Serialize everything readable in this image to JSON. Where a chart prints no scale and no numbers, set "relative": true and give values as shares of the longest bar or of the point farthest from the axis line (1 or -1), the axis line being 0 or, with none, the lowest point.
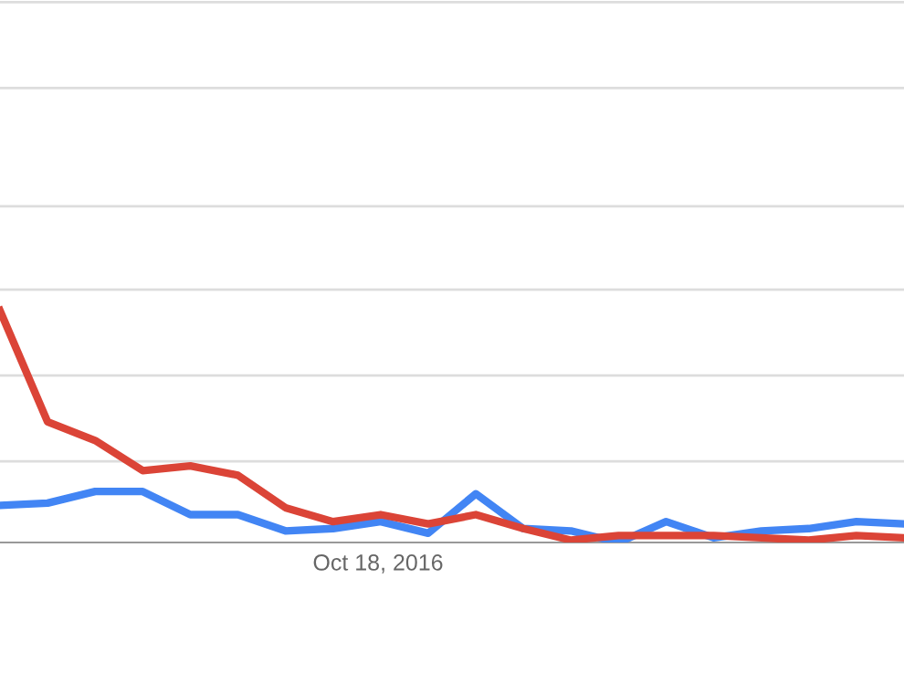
{
  "chart_data": {
    "type": "line",
    "relative": true,
    "legend": false,
    "marker": "none",
    "line_style": "solid",
    "categories": [
      null,
      null,
      null,
      null,
      null,
      null,
      null,
      null,
      null,
      null,
      null,
      null,
      null,
      null,
      null,
      null,
      null,
      null,
      null,
      null
    ],
    "annotations": [
      "Oct 18, 2016"
    ],
    "ref_lines": [
      {
        "axis": "y",
        "value": 0.35,
        "color": "#dddddd"
      },
      {
        "axis": "y",
        "value": 0.72,
        "color": "#dddddd"
      },
      {
        "axis": "y",
        "value": 1.09,
        "color": "#dddddd"
      },
      {
        "axis": "y",
        "value": 1.45,
        "color": "#dddddd"
      },
      {
        "axis": "y",
        "value": 1.96,
        "color": "#dddddd"
      },
      {
        "axis": "y",
        "value": 2.33,
        "color": "#dddddd"
      }
    ],
    "series": [
      {
        "color": "#4285f4",
        "values": [
          0.16,
          0.17,
          0.22,
          0.22,
          0.12,
          0.12,
          0.05,
          0.06,
          0.09,
          0.04,
          0.21,
          0.06,
          0.05,
          0.0,
          0.09,
          0.02,
          0.05,
          0.06,
          0.09,
          0.08
        ]
      },
      {
        "color": "#db4437",
        "values": [
          1.0,
          0.52,
          0.44,
          0.31,
          0.33,
          0.29,
          0.15,
          0.09,
          0.12,
          0.08,
          0.12,
          0.06,
          0.01,
          0.03,
          0.03,
          0.03,
          0.02,
          0.01,
          0.03,
          0.02
        ]
      }
    ]
  }
}
